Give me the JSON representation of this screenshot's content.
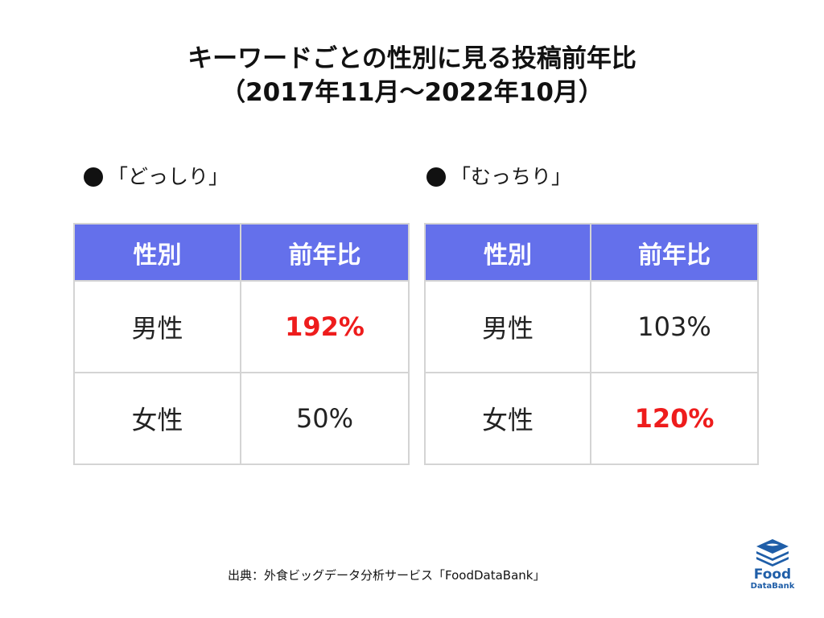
{
  "title": {
    "line1": "キーワードごとの性別に見る投稿前年比",
    "line2": "（2017年11月〜2022年10月）"
  },
  "tables": [
    {
      "label": "「どっしり」",
      "headers": [
        "性別",
        "前年比"
      ],
      "rows": [
        {
          "gender": "男性",
          "value": "192%",
          "highlight": true
        },
        {
          "gender": "女性",
          "value": "50%",
          "highlight": false
        }
      ]
    },
    {
      "label": "「むっちり」",
      "headers": [
        "性別",
        "前年比"
      ],
      "rows": [
        {
          "gender": "男性",
          "value": "103%",
          "highlight": false
        },
        {
          "gender": "女性",
          "value": "120%",
          "highlight": true
        }
      ]
    }
  ],
  "source": "出典：外食ビッグデータ分析サービス「FoodDataBank」",
  "logo": {
    "line1": "Food",
    "line2": "DataBank"
  },
  "colors": {
    "header_bg": "#6470eb",
    "highlight": "#ee1c1c",
    "logo": "#1f5ea8"
  }
}
